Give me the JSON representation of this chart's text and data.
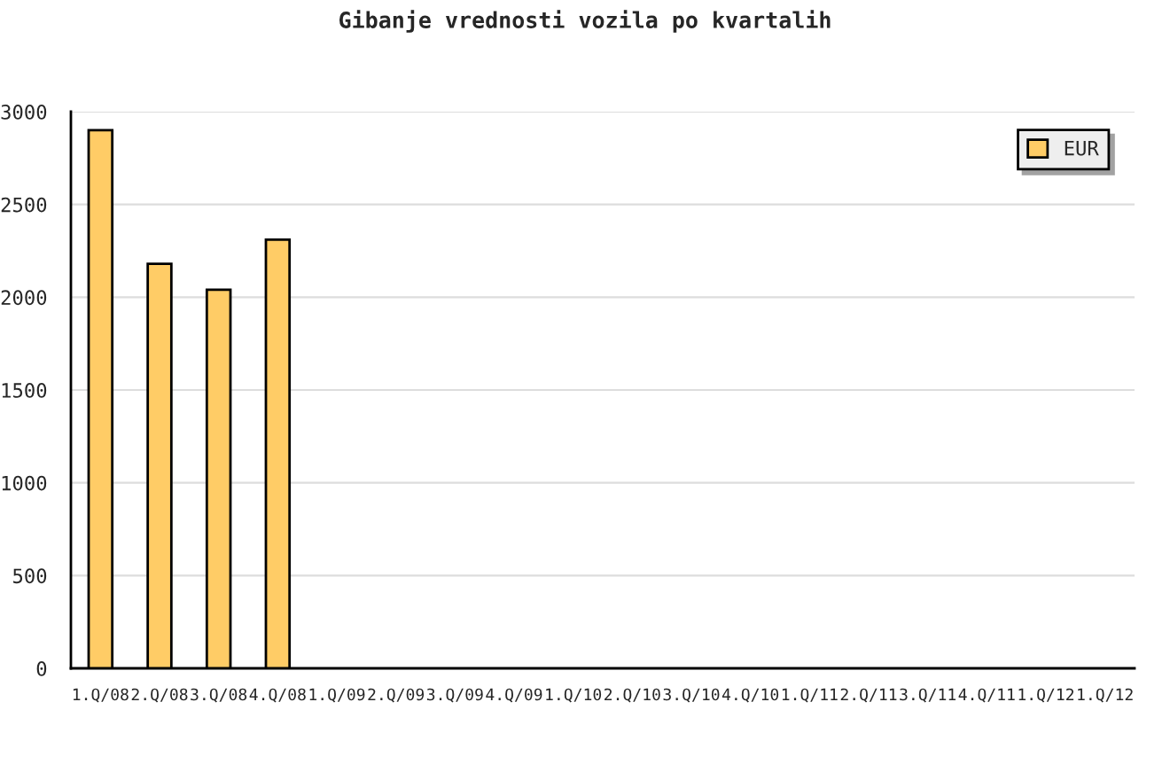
{
  "chart_data": {
    "type": "bar",
    "title": "Gibanje vrednosti vozila po kvartalih",
    "categories": [
      "1.Q/08",
      "2.Q/08",
      "3.Q/08",
      "4.Q/08",
      "1.Q/09",
      "2.Q/09",
      "3.Q/09",
      "4.Q/09",
      "1.Q/10",
      "2.Q/10",
      "3.Q/10",
      "4.Q/10",
      "1.Q/11",
      "2.Q/11",
      "3.Q/11",
      "4.Q/11",
      "1.Q/12",
      "1.Q/12"
    ],
    "series": [
      {
        "name": "EUR",
        "color": "#ffcc66",
        "values": [
          2900,
          2180,
          2040,
          2310,
          null,
          null,
          null,
          null,
          null,
          null,
          null,
          null,
          null,
          null,
          null,
          null,
          null,
          null
        ]
      }
    ],
    "ylim": [
      0,
      3000
    ],
    "yticks": [
      0,
      500,
      1000,
      1500,
      2000,
      2500,
      3000
    ],
    "grid": "y",
    "legend": "top right"
  }
}
